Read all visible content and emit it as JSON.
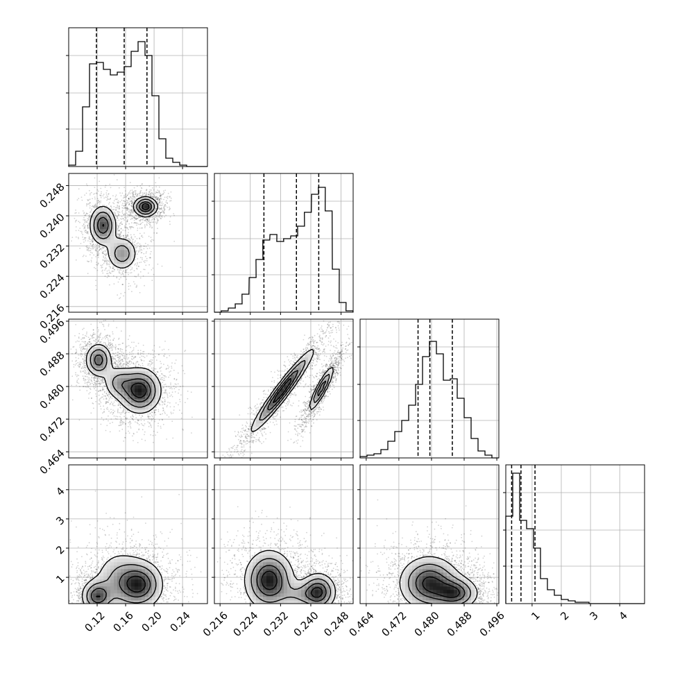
{
  "chart_data": {
    "type": "scatter",
    "layout": "corner-plot",
    "title": "",
    "n_params": 4,
    "params": [
      {
        "label": "",
        "range": [
          0.08,
          0.275
        ],
        "ticks": [
          0.12,
          0.16,
          0.2,
          0.24
        ],
        "tick_labels": [
          "0.12",
          "0.16",
          "0.20",
          "0.24"
        ],
        "quantiles": [
          0.119,
          0.158,
          0.19
        ],
        "hist_x": [
          0.08,
          0.0898,
          0.0995,
          0.1093,
          0.119,
          0.1288,
          0.1385,
          0.1483,
          0.158,
          0.1678,
          0.1775,
          0.1873,
          0.197,
          0.2068,
          0.2165,
          0.2263,
          0.236,
          0.2458,
          0.2555,
          0.2653
        ],
        "hist_counts": [
          0.01,
          0.11,
          0.43,
          0.74,
          0.75,
          0.7,
          0.66,
          0.68,
          0.72,
          0.83,
          0.9,
          0.8,
          0.51,
          0.2,
          0.06,
          0.03,
          0.01,
          0.0,
          0.0,
          0.0
        ]
      },
      {
        "label": "",
        "range": [
          0.2145,
          0.2512
        ],
        "ticks": [
          0.216,
          0.224,
          0.232,
          0.24,
          0.248
        ],
        "tick_labels": [
          "0.216",
          "0.224",
          "0.232",
          "0.240",
          "0.248"
        ],
        "quantiles": [
          0.2276,
          0.2362,
          0.2421
        ],
        "hist_x": [
          0.2145,
          0.2163,
          0.2182,
          0.22,
          0.2218,
          0.2237,
          0.2255,
          0.2273,
          0.2292,
          0.231,
          0.2328,
          0.2347,
          0.2365,
          0.2383,
          0.2402,
          0.242,
          0.2438,
          0.2457,
          0.2475,
          0.2493
        ],
        "hist_counts": [
          0.0,
          0.01,
          0.03,
          0.06,
          0.13,
          0.25,
          0.38,
          0.52,
          0.56,
          0.51,
          0.53,
          0.55,
          0.62,
          0.72,
          0.85,
          0.9,
          0.73,
          0.31,
          0.07,
          0.01
        ]
      },
      {
        "label": "",
        "range": [
          0.4625,
          0.4965
        ],
        "ticks": [
          0.464,
          0.472,
          0.48,
          0.488,
          0.496
        ],
        "tick_labels": [
          "0.464",
          "0.472",
          "0.480",
          "0.488",
          "0.496"
        ],
        "quantiles": [
          0.4767,
          0.4796,
          0.4851
        ],
        "hist_x": [
          0.4625,
          0.4642,
          0.4659,
          0.4676,
          0.4693,
          0.471,
          0.4727,
          0.4744,
          0.4761,
          0.4778,
          0.4795,
          0.4812,
          0.4829,
          0.4846,
          0.4863,
          0.488,
          0.4897,
          0.4914,
          0.4931,
          0.4948
        ],
        "hist_counts": [
          0.01,
          0.02,
          0.03,
          0.06,
          0.12,
          0.19,
          0.27,
          0.38,
          0.53,
          0.73,
          0.84,
          0.75,
          0.56,
          0.57,
          0.43,
          0.29,
          0.14,
          0.05,
          0.02,
          0.0
        ],
        "hist_note": "counts above are y-scaled relative to panel height 0..1"
      },
      {
        "label": "",
        "range": [
          0.1,
          4.85
        ],
        "ticks": [
          1,
          2,
          3,
          4
        ],
        "tick_labels": [
          "1",
          "2",
          "3",
          "4"
        ],
        "quantiles": [
          0.3,
          0.62,
          1.1
        ],
        "hist_x": [
          0.1,
          0.3375,
          0.575,
          0.8125,
          1.05,
          1.2875,
          1.525,
          1.7625,
          2.0,
          2.2375,
          2.475,
          2.7125,
          2.95,
          3.1875,
          3.425,
          3.6625,
          3.9,
          4.1375,
          4.375,
          4.6125
        ],
        "hist_counts": [
          0.63,
          0.94,
          0.6,
          0.54,
          0.4,
          0.18,
          0.1,
          0.06,
          0.03,
          0.02,
          0.01,
          0.01,
          0.0,
          0.0,
          0.0,
          0.0,
          0.0,
          0.0,
          0.0,
          0.0
        ]
      }
    ],
    "y_axis_labels": {
      "row1": [
        "0.216",
        "0.224",
        "0.232",
        "0.240",
        "0.248"
      ],
      "row2": [
        "0.464",
        "0.472",
        "0.480",
        "0.488",
        "0.496"
      ],
      "row3": [
        "1",
        "2",
        "3",
        "4"
      ]
    },
    "pair_modes": [
      {
        "i": 0,
        "j": 1,
        "modes": [
          {
            "c": [
              0.188,
              0.2424
            ],
            "s": [
              0.009,
              0.0014
            ],
            "w": 0.42
          },
          {
            "c": [
              0.128,
              0.2375
            ],
            "s": [
              0.01,
              0.0028
            ],
            "w": 0.35
          },
          {
            "c": [
              0.155,
              0.23
            ],
            "s": [
              0.012,
              0.0025
            ],
            "w": 0.23
          }
        ]
      },
      {
        "i": 0,
        "j": 2,
        "modes": [
          {
            "c": [
              0.122,
              0.4865
            ],
            "s": [
              0.01,
              0.0022
            ],
            "w": 0.35
          },
          {
            "c": [
              0.18,
              0.479
            ],
            "s": [
              0.016,
              0.003
            ],
            "w": 0.45
          },
          {
            "c": [
              0.15,
              0.481
            ],
            "s": [
              0.012,
              0.0022
            ],
            "w": 0.2
          }
        ]
      },
      {
        "i": 0,
        "j": 3,
        "modes": [
          {
            "c": [
              0.12,
              0.35
            ],
            "s": [
              0.012,
              0.3
            ],
            "w": 0.38
          },
          {
            "c": [
              0.18,
              0.75
            ],
            "s": [
              0.018,
              0.45
            ],
            "w": 0.42
          },
          {
            "c": [
              0.15,
              0.9
            ],
            "s": [
              0.02,
              0.6
            ],
            "w": 0.2
          }
        ]
      },
      {
        "i": 1,
        "j": 2,
        "modes": [
          {
            "c": [
              0.2325,
              0.479
            ],
            "s": [
              0.0045,
              0.0055
            ],
            "w": 0.55,
            "rho": 0.96
          },
          {
            "c": [
              0.2428,
              0.4795
            ],
            "s": [
              0.0018,
              0.003
            ],
            "w": 0.45,
            "rho": 0.9
          }
        ]
      },
      {
        "i": 1,
        "j": 3,
        "modes": [
          {
            "c": [
              0.229,
              0.9
            ],
            "s": [
              0.0035,
              0.55
            ],
            "w": 0.45
          },
          {
            "c": [
              0.242,
              0.5
            ],
            "s": [
              0.0025,
              0.35
            ],
            "w": 0.4
          },
          {
            "c": [
              0.237,
              0.4
            ],
            "s": [
              0.003,
              0.25
            ],
            "w": 0.15
          }
        ]
      },
      {
        "i": 2,
        "j": 3,
        "modes": [
          {
            "c": [
              0.4795,
              0.8
            ],
            "s": [
              0.004,
              0.5
            ],
            "w": 0.55
          },
          {
            "c": [
              0.486,
              0.45
            ],
            "s": [
              0.003,
              0.3
            ],
            "w": 0.45
          }
        ]
      }
    ],
    "grid": true,
    "colors": {
      "line": "#000000",
      "grid": "#b0b0b0",
      "sample": "#000000",
      "background": "#ffffff"
    }
  }
}
